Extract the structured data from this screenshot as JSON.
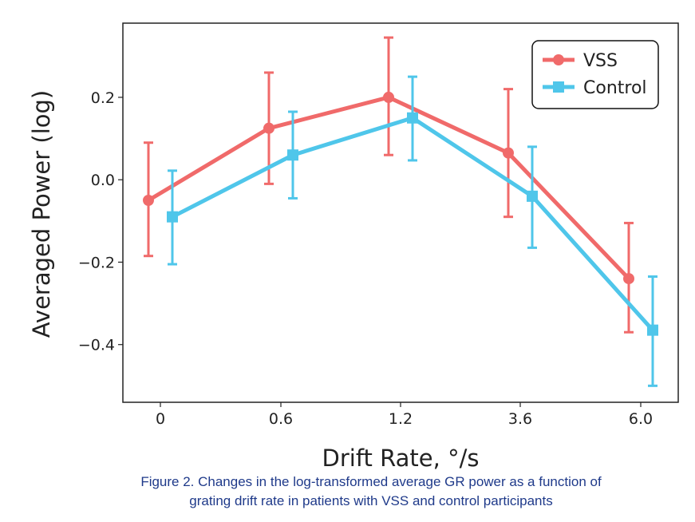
{
  "chart_data": {
    "type": "line",
    "xlabel": "Drift Rate, °/s",
    "ylabel": "Averaged Power (log)",
    "categories": [
      "0",
      "0.6",
      "1.2",
      "3.6",
      "6.0"
    ],
    "ylim": [
      -0.54,
      0.38
    ],
    "yticks": [
      0.2,
      0.0,
      -0.2,
      -0.4
    ],
    "ytick_labels": [
      "0.2",
      "0.0",
      "−0.2",
      "−0.4"
    ],
    "grid": false,
    "legend_position": "top-right",
    "series": [
      {
        "name": "VSS",
        "color": "#f06a6a",
        "marker": "circle",
        "values": [
          -0.05,
          0.125,
          0.2,
          0.065,
          -0.24
        ],
        "err_low": [
          -0.185,
          -0.01,
          0.06,
          -0.09,
          -0.37
        ],
        "err_high": [
          0.09,
          0.26,
          0.345,
          0.22,
          -0.105
        ]
      },
      {
        "name": "Control",
        "color": "#4fc6ea",
        "marker": "square",
        "values": [
          -0.09,
          0.06,
          0.15,
          -0.04,
          -0.365
        ],
        "err_low": [
          -0.205,
          -0.045,
          0.047,
          -0.165,
          -0.5
        ],
        "err_high": [
          0.022,
          0.165,
          0.25,
          0.08,
          -0.235
        ]
      }
    ]
  },
  "caption": {
    "line1": "Figure 2. Changes in the log-transformed average GR power as a function of",
    "line2": "grating drift rate in patients with VSS and control participants"
  }
}
